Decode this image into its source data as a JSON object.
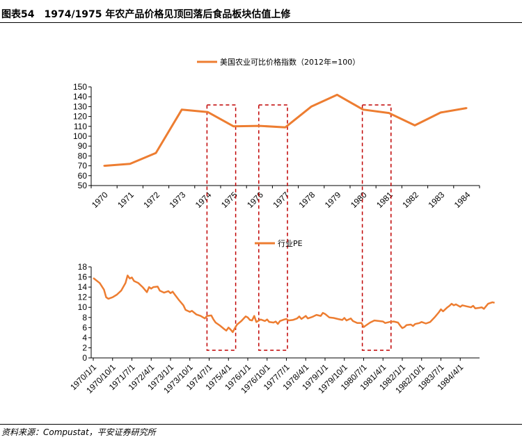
{
  "figure": {
    "label": "图表54",
    "title": "1974/1975 年农产品价格见顶回落后食品板块估值上修",
    "source": "资料来源：Compustat，平安证券研究所"
  },
  "colors": {
    "series": "#ED7D31",
    "highlight": "#C00000",
    "axis": "#000000"
  },
  "chart_data": [
    {
      "type": "line",
      "title": "",
      "legend": "美国农业可比价格指数（2012年=100）",
      "legend_position": "top-center",
      "xlabel": "",
      "ylabel": "",
      "ylim": [
        50,
        150
      ],
      "yticks": [
        50,
        60,
        70,
        80,
        90,
        100,
        110,
        120,
        130,
        140,
        150
      ],
      "categories": [
        "1970",
        "1971",
        "1972",
        "1973",
        "1974",
        "1975",
        "1976",
        "1977",
        "1978",
        "1979",
        "1980",
        "1981",
        "1982",
        "1983",
        "1984"
      ],
      "values": [
        70,
        72,
        83,
        127,
        124.5,
        110,
        110.5,
        109,
        130,
        142,
        127,
        123.5,
        111,
        124,
        128.5
      ],
      "highlight_ranges": [
        [
          4,
          5
        ],
        [
          6,
          7
        ],
        [
          10,
          11
        ]
      ]
    },
    {
      "type": "line",
      "title": "",
      "legend": "行业PE",
      "legend_position": "top-center",
      "xlabel": "",
      "ylabel": "",
      "ylim": [
        0,
        18
      ],
      "yticks": [
        0,
        2,
        4,
        6,
        8,
        10,
        12,
        14,
        16,
        18
      ],
      "x_start": "1970/1/1",
      "x_end": "1984/12/1",
      "xticks": [
        "1970/1/1",
        "1970/10/1",
        "1971/7/1",
        "1972/4/1",
        "1973/1/1",
        "1973/10/1",
        "1974/7/1",
        "1975/4/1",
        "1976/1/1",
        "1976/10/1",
        "1977/7/1",
        "1978/4/1",
        "1979/1/1",
        "1979/10/1",
        "1980/7/1",
        "1981/4/1",
        "1982/1/1",
        "1982/10/1",
        "1983/7/1",
        "1984/4/1"
      ],
      "points": [
        [
          0,
          15.8
        ],
        [
          3,
          14.8
        ],
        [
          5,
          13.5
        ],
        [
          6,
          12.0
        ],
        [
          7,
          11.7
        ],
        [
          9,
          12.0
        ],
        [
          11,
          12.5
        ],
        [
          13,
          13.3
        ],
        [
          15,
          14.8
        ],
        [
          16,
          16.3
        ],
        [
          17,
          15.7
        ],
        [
          18,
          15.9
        ],
        [
          19,
          15.2
        ],
        [
          21,
          14.8
        ],
        [
          23,
          14.0
        ],
        [
          25,
          13.0
        ],
        [
          26,
          14.0
        ],
        [
          27,
          13.7
        ],
        [
          28,
          14.0
        ],
        [
          30,
          14.1
        ],
        [
          31,
          13.3
        ],
        [
          33,
          12.9
        ],
        [
          35,
          13.2
        ],
        [
          36,
          12.8
        ],
        [
          37,
          13.1
        ],
        [
          38,
          12.5
        ],
        [
          40,
          11.4
        ],
        [
          42,
          10.4
        ],
        [
          43,
          9.5
        ],
        [
          45,
          9.1
        ],
        [
          46,
          9.3
        ],
        [
          48,
          8.6
        ],
        [
          50,
          8.3
        ],
        [
          52,
          7.8
        ],
        [
          53,
          8.3
        ],
        [
          55,
          8.4
        ],
        [
          56,
          7.6
        ],
        [
          57,
          7.0
        ],
        [
          59,
          6.4
        ],
        [
          61,
          5.7
        ],
        [
          62,
          5.4
        ],
        [
          63,
          6.0
        ],
        [
          64,
          5.6
        ],
        [
          65,
          5.1
        ],
        [
          66,
          5.9
        ],
        [
          67,
          6.6
        ],
        [
          69,
          7.3
        ],
        [
          71,
          8.2
        ],
        [
          72,
          8.0
        ],
        [
          73,
          7.5
        ],
        [
          74,
          7.4
        ],
        [
          75,
          8.3
        ],
        [
          76,
          7.1
        ],
        [
          78,
          7.6
        ],
        [
          80,
          7.3
        ],
        [
          81,
          7.6
        ],
        [
          82,
          7.1
        ],
        [
          84,
          7.0
        ],
        [
          85,
          7.2
        ],
        [
          86,
          6.7
        ],
        [
          87,
          7.3
        ],
        [
          89,
          7.6
        ],
        [
          90,
          7.7
        ],
        [
          91,
          7.4
        ],
        [
          93,
          7.5
        ],
        [
          95,
          7.8
        ],
        [
          96,
          8.2
        ],
        [
          97,
          7.7
        ],
        [
          99,
          8.3
        ],
        [
          100,
          7.8
        ],
        [
          102,
          8.1
        ],
        [
          104,
          8.5
        ],
        [
          106,
          8.3
        ],
        [
          107,
          8.9
        ],
        [
          108,
          8.7
        ],
        [
          110,
          8.0
        ],
        [
          112,
          7.9
        ],
        [
          114,
          7.7
        ],
        [
          116,
          7.5
        ],
        [
          117,
          7.9
        ],
        [
          118,
          7.4
        ],
        [
          120,
          7.8
        ],
        [
          121,
          7.3
        ],
        [
          123,
          6.9
        ],
        [
          125,
          6.9
        ],
        [
          126,
          6.1
        ],
        [
          127,
          6.4
        ],
        [
          129,
          7.0
        ],
        [
          131,
          7.4
        ],
        [
          133,
          7.3
        ],
        [
          135,
          7.2
        ],
        [
          136,
          6.9
        ],
        [
          138,
          7.1
        ],
        [
          140,
          7.2
        ],
        [
          142,
          7.0
        ],
        [
          143,
          6.4
        ],
        [
          144,
          5.9
        ],
        [
          145,
          6.1
        ],
        [
          146,
          6.5
        ],
        [
          148,
          6.6
        ],
        [
          149,
          6.3
        ],
        [
          150,
          6.7
        ],
        [
          152,
          6.9
        ],
        [
          153,
          7.1
        ],
        [
          155,
          6.8
        ],
        [
          157,
          7.1
        ],
        [
          159,
          8.0
        ],
        [
          161,
          9.0
        ],
        [
          162,
          9.6
        ],
        [
          163,
          9.2
        ],
        [
          165,
          10.0
        ],
        [
          166,
          10.3
        ],
        [
          167,
          10.7
        ],
        [
          168,
          10.4
        ],
        [
          169,
          10.6
        ],
        [
          171,
          10.1
        ],
        [
          172,
          10.4
        ],
        [
          174,
          10.2
        ],
        [
          176,
          10.0
        ],
        [
          177,
          10.3
        ],
        [
          178,
          9.8
        ],
        [
          180,
          9.9
        ],
        [
          181,
          10.0
        ],
        [
          182,
          9.7
        ],
        [
          184,
          10.7
        ],
        [
          186,
          11.0
        ],
        [
          187,
          10.9
        ]
      ],
      "highlight_ranges": [
        [
          54,
          70
        ],
        [
          84,
          99
        ],
        [
          129,
          146
        ]
      ]
    }
  ]
}
